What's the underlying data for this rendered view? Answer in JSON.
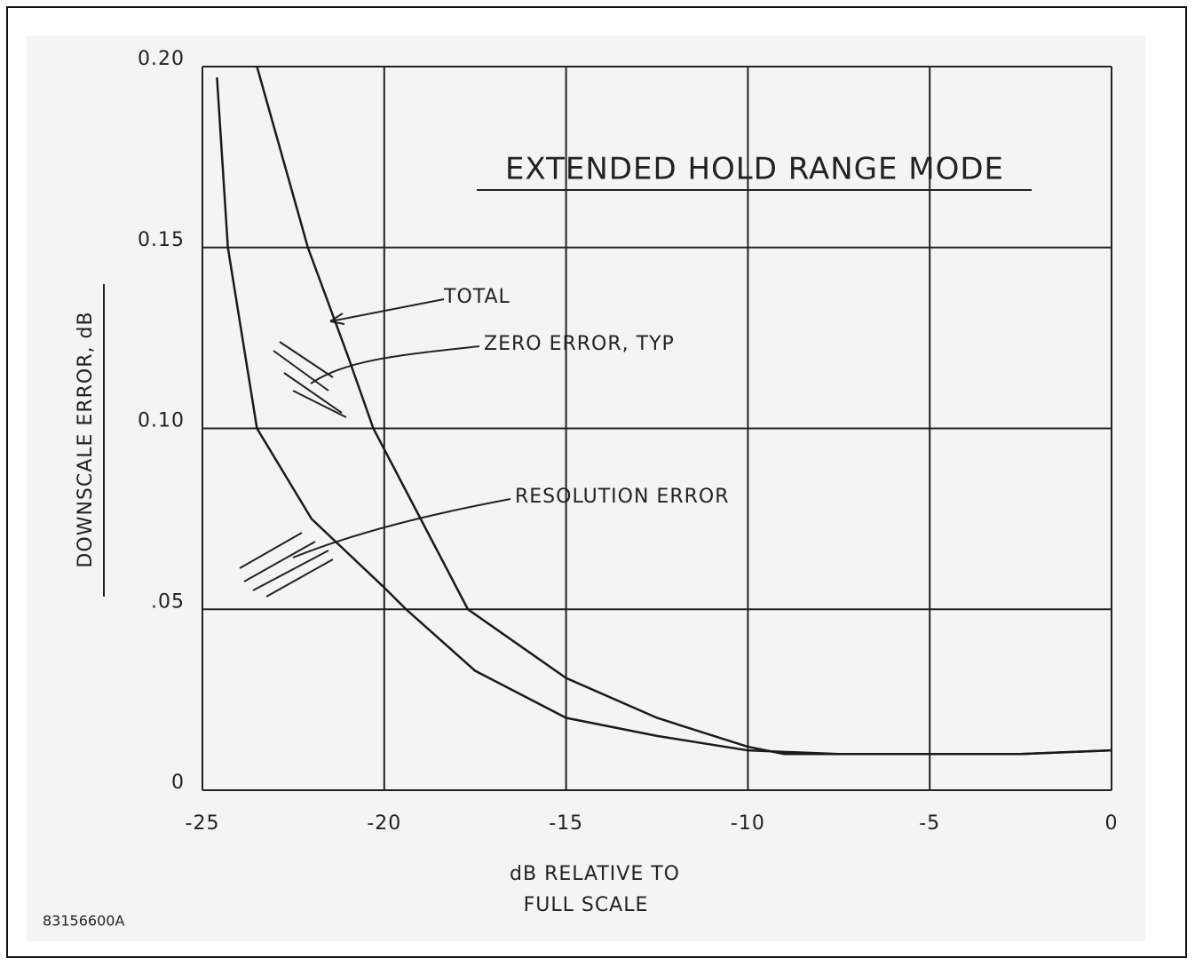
{
  "chart_data": {
    "type": "line",
    "title": "EXTENDED HOLD RANGE MODE",
    "xlabel": [
      "dB RELATIVE TO",
      "FULL SCALE"
    ],
    "ylabel": "DOWNSCALE ERROR, dB",
    "figure_id": "83156600A",
    "annotations": [
      "ZERO ERROR, TYP"
    ],
    "series": [
      {
        "name": "TOTAL",
        "color": "#1a1a1a",
        "x": [
          -23.5,
          -22.1,
          -21,
          -20.3,
          -19,
          -17.7,
          -15,
          -12.5,
          -10,
          -9,
          -7.5,
          -5,
          -2.5,
          0
        ],
        "values": [
          0.2,
          0.15,
          0.12,
          0.1,
          0.075,
          0.05,
          0.031,
          0.02,
          0.012,
          0.01,
          0.01,
          0.01,
          0.01,
          0.011
        ]
      },
      {
        "name": "RESOLUTION ERROR",
        "color": "#1a1a1a",
        "x": [
          -24.6,
          -24.3,
          -23.5,
          -22,
          -20,
          -19.4,
          -17.5,
          -15,
          -12.5,
          -10,
          -7.5,
          -5,
          -2.5,
          0
        ],
        "values": [
          0.197,
          0.15,
          0.1,
          0.075,
          0.056,
          0.05,
          0.033,
          0.02,
          0.015,
          0.011,
          0.01,
          0.01,
          0.01,
          0.011
        ]
      }
    ],
    "xlim": [
      -25,
      0
    ],
    "xticks": [
      -25,
      -20,
      -15,
      -10,
      -5,
      0
    ],
    "ylim": [
      0,
      0.2
    ],
    "yticks": [
      0,
      {
        "value": 0.05,
        "label": ".05"
      },
      {
        "value": 0.1,
        "label": "0.10"
      },
      {
        "value": 0.15,
        "label": "0.15"
      },
      {
        "value": 0.2,
        "label": "0.20"
      }
    ],
    "grid": true
  }
}
